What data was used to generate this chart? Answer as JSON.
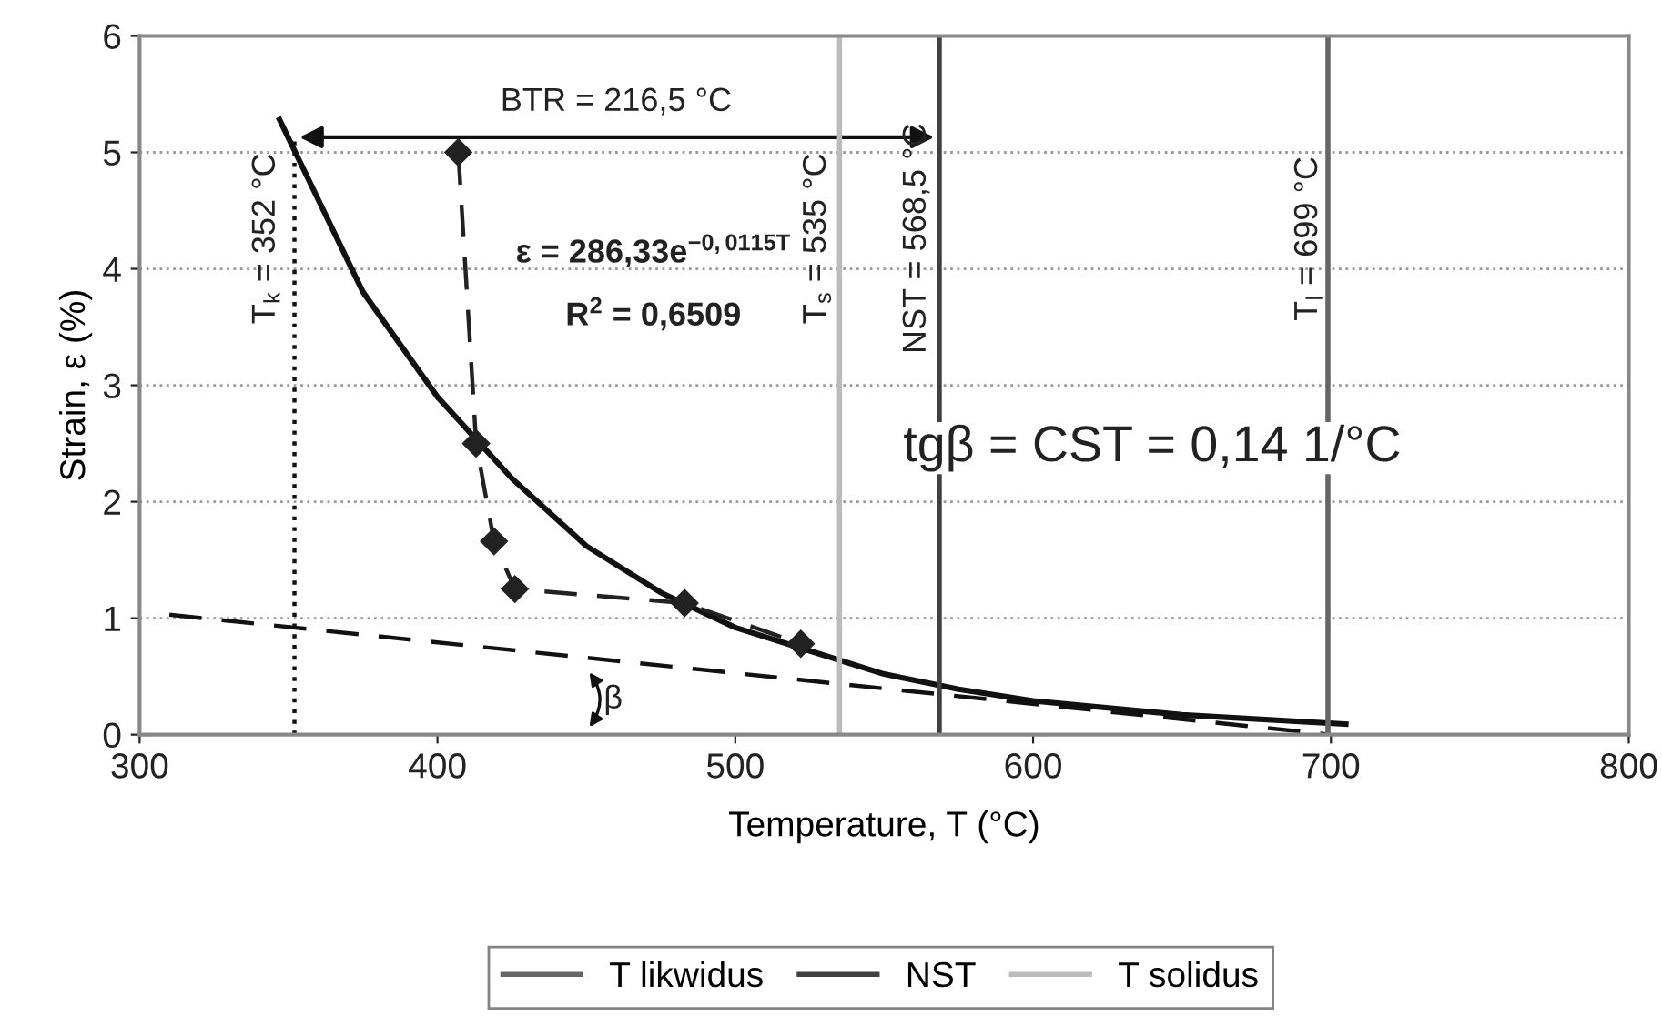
{
  "chart_data": {
    "type": "line",
    "xlabel": "Temperature, T (°C)",
    "ylabel": "Strain, ε (%)",
    "xlim": [
      300,
      800
    ],
    "xticks": [
      300,
      400,
      500,
      600,
      700,
      800
    ],
    "ylim": [
      0,
      6
    ],
    "yticks": [
      0,
      1,
      2,
      3,
      4,
      5,
      6
    ],
    "grid": "y",
    "legend": "bottom",
    "series": [
      {
        "line_style": "dashed",
        "marker": "diamond",
        "color": "#222222",
        "x": [
          407,
          413,
          419,
          426,
          483,
          522
        ],
        "values": [
          5.0,
          2.5,
          1.66,
          1.25,
          1.13,
          0.78
        ]
      },
      {
        "line_style": "solid",
        "color": "#111111",
        "x": [
          347,
          375,
          400,
          425,
          450,
          475,
          500,
          525,
          550,
          575,
          600,
          650,
          705
        ],
        "values": [
          5.28,
          3.8,
          2.9,
          2.2,
          1.62,
          1.22,
          0.92,
          0.72,
          0.52,
          0.39,
          0.29,
          0.17,
          0.09
        ]
      },
      {
        "line_style": "dashed",
        "color": "#111111",
        "x": [
          310,
          700
        ],
        "values": [
          1.03,
          0.0
        ]
      },
      {
        "line_style": "dotted",
        "color": "#111111",
        "x": [
          352,
          352
        ],
        "values": [
          0,
          5.1
        ]
      },
      {
        "name": "T likwidus",
        "line_style": "solid",
        "color": "#666666",
        "x": [
          699,
          699
        ],
        "values": [
          0,
          6
        ]
      },
      {
        "name": "NST",
        "line_style": "solid",
        "color": "#404040",
        "x": [
          568.5,
          568.5
        ],
        "values": [
          0,
          6
        ]
      },
      {
        "name": "T solidus",
        "line_style": "solid",
        "color": "#bbbbbb",
        "x": [
          535,
          535
        ],
        "values": [
          0,
          6
        ]
      }
    ],
    "annotations": [
      "BTR = 216,5 °C",
      "T$_{k}$ = 352 °C",
      "T$_{s}$ = 535 °C",
      "NST = 568,5 °C",
      "T$_{l}$ = 699 °C",
      "ε = 286,33e$^{−0,0115T}$",
      "R$^{2}$ = 0,6509",
      "tgβ = CST = 0,14 1/°C",
      "β"
    ]
  }
}
